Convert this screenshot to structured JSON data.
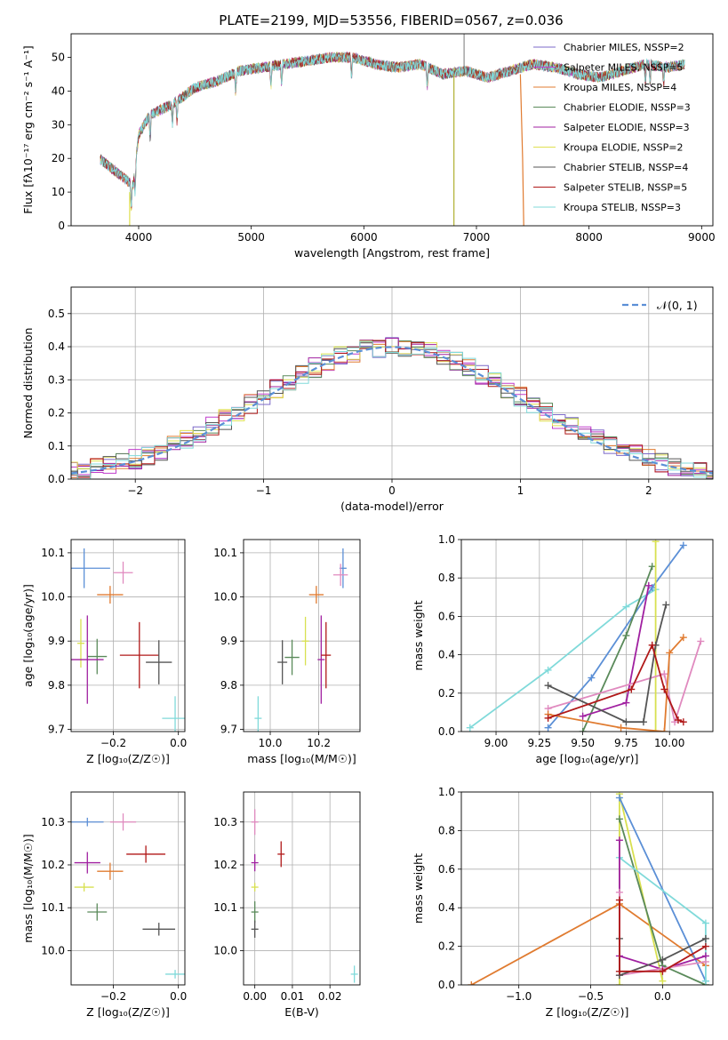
{
  "figure_title": "PLATE=2199, MJD=53556, FIBERID=0567, z=0.036",
  "chart_data": [
    {
      "id": "spectrum",
      "type": "line",
      "xlabel": "wavelength [Angstrom, rest frame]",
      "ylabel": "Flux [fλ10⁻¹⁷ erg cm⁻² s⁻¹ A⁻¹]",
      "xlim": [
        3400,
        9100
      ],
      "ylim": [
        0,
        57
      ],
      "xticks": [
        "4000",
        "5000",
        "6000",
        "7000",
        "8000",
        "9000"
      ],
      "yticks": [
        "0",
        "10",
        "20",
        "30",
        "40",
        "50"
      ],
      "grid": false,
      "legend_placement": "upper right",
      "continuum": {
        "wavelength": [
          3650,
          3800,
          3950,
          4000,
          4100,
          4300,
          4500,
          4700,
          4900,
          5100,
          5300,
          5500,
          5700,
          5900,
          6100,
          6300,
          6500,
          6700,
          6900,
          7100,
          7300,
          7500,
          7700,
          7900,
          8100,
          8300,
          8500,
          8700,
          8850
        ],
        "flux": [
          20,
          16,
          12,
          27,
          33,
          36,
          41,
          43,
          46,
          47,
          48,
          49,
          50,
          50,
          48,
          47,
          48,
          45,
          46,
          44,
          46,
          48,
          47,
          45,
          44,
          46,
          48,
          47,
          48
        ]
      },
      "series": [
        {
          "name": "Chabrier MILES, N_SSP=2",
          "color": "#7b68c8"
        },
        {
          "name": "Salpeter MILES, N_SSP=5",
          "color": "#c03ccb"
        },
        {
          "name": "Kroupa MILES, N_SSP=4",
          "color": "#e07b30"
        },
        {
          "name": "Chabrier ELODIE, N_SSP=3",
          "color": "#5a8a5a"
        },
        {
          "name": "Salpeter ELODIE, N_SSP=3",
          "color": "#a020a0"
        },
        {
          "name": "Kroupa ELODIE, N_SSP=2",
          "color": "#e0e050"
        },
        {
          "name": "Chabrier STELIB, N_SSP=4",
          "color": "#555555"
        },
        {
          "name": "Salpeter STELIB, N_SSP=5",
          "color": "#b01818"
        },
        {
          "name": "Kroupa STELIB, N_SSP=3",
          "color": "#80dada"
        }
      ]
    },
    {
      "id": "residual_hist",
      "type": "line",
      "xlabel": "(data-model)/error",
      "ylabel": "Normed distribution",
      "xlim": [
        -2.5,
        2.5
      ],
      "ylim": [
        0,
        0.58
      ],
      "xticks": [
        "−2",
        "−1",
        "0",
        "1",
        "2"
      ],
      "yticks": [
        "0.0",
        "0.1",
        "0.2",
        "0.3",
        "0.4",
        "0.5"
      ],
      "grid": true,
      "legend_placement": "upper right",
      "reference_label": "𝒩(0, 1)",
      "reference_color": "#5b8fd6"
    },
    {
      "id": "age_vs_Z",
      "type": "scatter",
      "xlabel": "Z [log₁₀(Z/Z☉)]",
      "ylabel": "age  [log₁₀(age/yr)]",
      "xlim": [
        -0.33,
        0.02
      ],
      "ylim": [
        9.695,
        10.13
      ],
      "xticks": [
        "−0.2",
        "0.0"
      ],
      "yticks": [
        "9.7",
        "9.8",
        "9.9",
        "10.0",
        "10.1"
      ],
      "grid": true,
      "points": [
        {
          "x": -0.29,
          "y": 10.065,
          "xerr": 0.08,
          "yerr": 0.045,
          "color": "#5b8fd6"
        },
        {
          "x": -0.17,
          "y": 10.055,
          "xerr": 0.03,
          "yerr": 0.025,
          "color": "#e08abf"
        },
        {
          "x": -0.21,
          "y": 10.005,
          "xerr": 0.04,
          "yerr": 0.02,
          "color": "#e07b30"
        },
        {
          "x": -0.3,
          "y": 9.895,
          "xerr": 0.01,
          "yerr": 0.055,
          "color": "#d8e050"
        },
        {
          "x": -0.25,
          "y": 9.865,
          "xerr": 0.03,
          "yerr": 0.04,
          "color": "#5a8a5a"
        },
        {
          "x": -0.28,
          "y": 9.858,
          "xerr": 0.05,
          "yerr": 0.1,
          "color": "#a020a0"
        },
        {
          "x": -0.12,
          "y": 9.868,
          "xerr": 0.06,
          "yerr": 0.075,
          "color": "#b01818"
        },
        {
          "x": -0.06,
          "y": 9.852,
          "xerr": 0.04,
          "yerr": 0.05,
          "color": "#555555"
        },
        {
          "x": -0.01,
          "y": 9.725,
          "xerr": 0.04,
          "yerr": 0.05,
          "color": "#80dada"
        }
      ]
    },
    {
      "id": "age_vs_mass",
      "type": "scatter",
      "xlabel": "mass [log₁₀(M/M☉)]",
      "ylabel": "",
      "xlim": [
        9.89,
        10.37
      ],
      "ylim": [
        9.695,
        10.13
      ],
      "xticks": [
        "10.0",
        "10.2"
      ],
      "yticks": [
        "9.7",
        "9.8",
        "9.9",
        "10.0",
        "10.1"
      ],
      "grid": true,
      "points": [
        {
          "x": 10.3,
          "y": 10.065,
          "xerr": 0.01,
          "yerr": 0.045,
          "color": "#5b8fd6"
        },
        {
          "x": 10.29,
          "y": 10.05,
          "xerr": 0.03,
          "yerr": 0.025,
          "color": "#e08abf"
        },
        {
          "x": 10.19,
          "y": 10.005,
          "xerr": 0.03,
          "yerr": 0.02,
          "color": "#e07b30"
        },
        {
          "x": 10.145,
          "y": 9.9,
          "xerr": 0.01,
          "yerr": 0.055,
          "color": "#d8e050"
        },
        {
          "x": 10.09,
          "y": 9.863,
          "xerr": 0.03,
          "yerr": 0.04,
          "color": "#5a8a5a"
        },
        {
          "x": 10.21,
          "y": 9.858,
          "xerr": 0.01,
          "yerr": 0.1,
          "color": "#a020a0"
        },
        {
          "x": 10.23,
          "y": 9.868,
          "xerr": 0.02,
          "yerr": 0.075,
          "color": "#b01818"
        },
        {
          "x": 10.05,
          "y": 9.852,
          "xerr": 0.02,
          "yerr": 0.05,
          "color": "#555555"
        },
        {
          "x": 9.95,
          "y": 9.725,
          "xerr": 0.01,
          "yerr": 0.05,
          "color": "#80dada"
        }
      ]
    },
    {
      "id": "mass_weight_vs_age",
      "type": "line",
      "xlabel": "age  [log₁₀(age/yr)]",
      "ylabel": "mass weight",
      "xlim": [
        8.8,
        10.25
      ],
      "ylim": [
        0,
        1
      ],
      "xticks": [
        "9.00",
        "9.25",
        "9.50",
        "9.75",
        "10.00"
      ],
      "yticks": [
        "0.0",
        "0.2",
        "0.4",
        "0.6",
        "0.8",
        "1.0"
      ],
      "grid": true,
      "series": [
        {
          "color": "#80dada",
          "x": [
            8.85,
            9.3,
            9.75,
            9.92
          ],
          "y": [
            0.02,
            0.32,
            0.65,
            0.74
          ]
        },
        {
          "color": "#5b8fd6",
          "x": [
            9.3,
            9.55,
            9.9,
            10.08
          ],
          "y": [
            0.02,
            0.28,
            0.75,
            0.97
          ]
        },
        {
          "color": "#5a8a5a",
          "x": [
            9.5,
            9.75,
            9.9
          ],
          "y": [
            0.0,
            0.5,
            0.86
          ]
        },
        {
          "color": "#d8e050",
          "x": [
            9.92,
            9.92
          ],
          "y": [
            0.0,
            0.99
          ]
        },
        {
          "color": "#a020a0",
          "x": [
            9.5,
            9.75,
            9.88
          ],
          "y": [
            0.08,
            0.15,
            0.76
          ]
        },
        {
          "color": "#e08abf",
          "x": [
            9.3,
            9.97,
            10.03,
            10.18
          ],
          "y": [
            0.12,
            0.3,
            0.05,
            0.47
          ]
        },
        {
          "color": "#e07b30",
          "x": [
            9.3,
            9.72,
            9.97,
            10.0,
            10.08
          ],
          "y": [
            0.09,
            0.02,
            0.0,
            0.41,
            0.49
          ]
        },
        {
          "color": "#555555",
          "x": [
            9.3,
            9.75,
            9.85,
            9.92,
            9.98
          ],
          "y": [
            0.24,
            0.05,
            0.05,
            0.45,
            0.66
          ]
        },
        {
          "color": "#b01818",
          "x": [
            9.3,
            9.78,
            9.9,
            9.97,
            10.05,
            10.08
          ],
          "y": [
            0.07,
            0.22,
            0.45,
            0.22,
            0.06,
            0.05
          ]
        }
      ]
    },
    {
      "id": "mass_vs_Z",
      "type": "scatter",
      "xlabel": "Z [log₁₀(Z/Z☉)]",
      "ylabel": "mass [log₁₀(M/M☉)]",
      "xlim": [
        -0.33,
        0.02
      ],
      "ylim": [
        9.92,
        10.37
      ],
      "xticks": [
        "−0.2",
        "0.0"
      ],
      "yticks": [
        "10.0",
        "10.1",
        "10.2",
        "10.3"
      ],
      "grid": true,
      "points": [
        {
          "x": -0.28,
          "y": 10.3,
          "xerr": 0.05,
          "yerr": 0.01,
          "color": "#5b8fd6"
        },
        {
          "x": -0.17,
          "y": 10.3,
          "xerr": 0.04,
          "yerr": 0.02,
          "color": "#e08abf"
        },
        {
          "x": -0.28,
          "y": 10.205,
          "xerr": 0.04,
          "yerr": 0.025,
          "color": "#a020a0"
        },
        {
          "x": -0.1,
          "y": 10.225,
          "xerr": 0.06,
          "yerr": 0.02,
          "color": "#b01818"
        },
        {
          "x": -0.21,
          "y": 10.185,
          "xerr": 0.04,
          "yerr": 0.02,
          "color": "#e07b30"
        },
        {
          "x": -0.29,
          "y": 10.148,
          "xerr": 0.03,
          "yerr": 0.01,
          "color": "#d8e050"
        },
        {
          "x": -0.25,
          "y": 10.09,
          "xerr": 0.03,
          "yerr": 0.02,
          "color": "#5a8a5a"
        },
        {
          "x": -0.06,
          "y": 10.05,
          "xerr": 0.05,
          "yerr": 0.015,
          "color": "#555555"
        },
        {
          "x": -0.01,
          "y": 9.945,
          "xerr": 0.03,
          "yerr": 0.01,
          "color": "#80dada"
        }
      ]
    },
    {
      "id": "mass_vs_ebv",
      "type": "scatter",
      "xlabel": "E(B-V)",
      "ylabel": "",
      "xlim": [
        -0.003,
        0.028
      ],
      "ylim": [
        9.92,
        10.37
      ],
      "xticks": [
        "0.00",
        "0.01",
        "0.02"
      ],
      "yticks": [
        "10.0",
        "10.1",
        "10.2",
        "10.3"
      ],
      "grid": true,
      "points": [
        {
          "x": 0.0,
          "y": 10.3,
          "xerr": 0.0,
          "yerr": 0.03,
          "color": "#e08abf"
        },
        {
          "x": 0.0,
          "y": 10.205,
          "xerr": 0.0,
          "yerr": 0.02,
          "color": "#a020a0"
        },
        {
          "x": 0.0,
          "y": 10.148,
          "xerr": 0.0,
          "yerr": 0.01,
          "color": "#d8e050"
        },
        {
          "x": 0.0,
          "y": 10.09,
          "xerr": 0.0,
          "yerr": 0.025,
          "color": "#5a8a5a"
        },
        {
          "x": 0.0,
          "y": 10.05,
          "xerr": 0.0,
          "yerr": 0.02,
          "color": "#555555"
        },
        {
          "x": 0.007,
          "y": 10.225,
          "xerr": 0.0,
          "yerr": 0.03,
          "color": "#b01818"
        },
        {
          "x": 0.0265,
          "y": 9.945,
          "xerr": 0.0,
          "yerr": 0.02,
          "color": "#80dada"
        }
      ]
    },
    {
      "id": "mass_weight_vs_Z",
      "type": "line",
      "xlabel": "Z [log₁₀(Z/Z☉)]",
      "ylabel": "mass weight",
      "xlim": [
        -1.4,
        0.35
      ],
      "ylim": [
        0,
        1
      ],
      "xticks": [
        "−1.0",
        "−0.5",
        "0.0"
      ],
      "yticks": [
        "0.0",
        "0.2",
        "0.4",
        "0.6",
        "0.8",
        "1.0"
      ],
      "grid": true,
      "series": [
        {
          "color": "#e07b30",
          "x": [
            -1.33,
            -0.3,
            0.3
          ],
          "y": [
            0.0,
            0.42,
            0.1
          ]
        },
        {
          "color": "#d8e050",
          "x": [
            -0.3,
            -0.3,
            0.0
          ],
          "y": [
            0.0,
            0.99,
            0.02
          ]
        },
        {
          "color": "#5b8fd6",
          "x": [
            -0.3,
            0.3
          ],
          "y": [
            0.97,
            0.02
          ]
        },
        {
          "color": "#5a8a5a",
          "x": [
            -0.3,
            0.0,
            0.3
          ],
          "y": [
            0.86,
            0.1,
            0.0
          ]
        },
        {
          "color": "#80dada",
          "x": [
            -0.3,
            0.3,
            0.3
          ],
          "y": [
            0.66,
            0.32,
            0.02
          ]
        },
        {
          "color": "#a020a0",
          "x": [
            -0.3,
            -0.3,
            0.0,
            0.3
          ],
          "y": [
            0.75,
            0.15,
            0.08,
            0.15
          ]
        },
        {
          "color": "#e08abf",
          "x": [
            -0.3,
            -0.3,
            0.3
          ],
          "y": [
            0.48,
            0.05,
            0.12
          ]
        },
        {
          "color": "#555555",
          "x": [
            -0.3,
            -0.3,
            0.0,
            0.3
          ],
          "y": [
            0.24,
            0.05,
            0.13,
            0.24
          ]
        },
        {
          "color": "#b01818",
          "x": [
            -0.3,
            -0.3,
            0.0,
            0.3
          ],
          "y": [
            0.44,
            0.07,
            0.07,
            0.2
          ]
        }
      ]
    }
  ]
}
